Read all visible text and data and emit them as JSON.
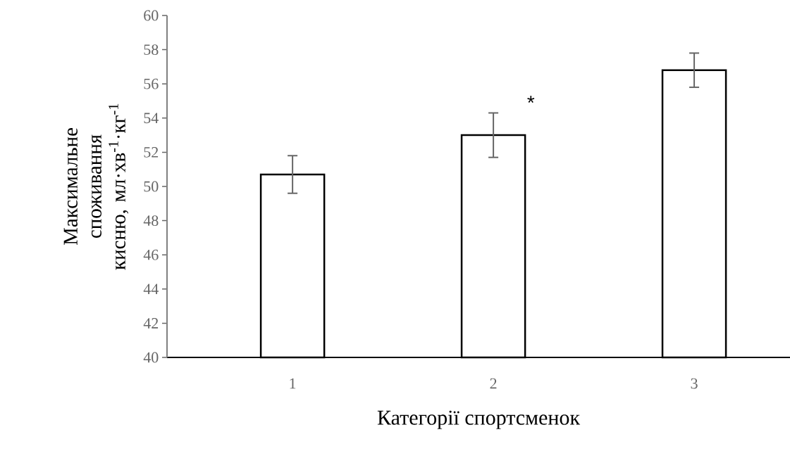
{
  "chart_data": {
    "type": "bar",
    "xlabel": "Категорії спортсменок",
    "ylabel": "Максимальне споживання кисню, мл·хв$^{-1}$·кг$^{-1}$",
    "categories": [
      "1",
      "2",
      "3"
    ],
    "values": [
      50.7,
      53.0,
      56.8
    ],
    "errors": [
      1.1,
      1.3,
      1.0
    ],
    "color": "#ffffff",
    "ylim": [
      40,
      60
    ],
    "yticks": [
      40,
      42,
      44,
      46,
      48,
      50,
      52,
      54,
      56,
      58,
      60
    ],
    "annotations": [
      "*"
    ]
  }
}
